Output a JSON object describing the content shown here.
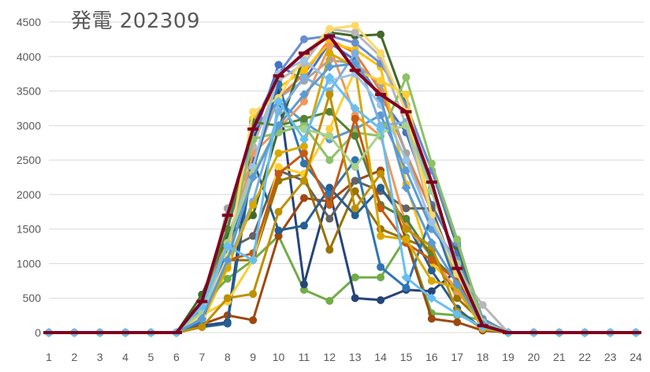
{
  "chart_data": {
    "type": "line",
    "title": "発電 202309",
    "xlabel": "",
    "ylabel": "",
    "x": [
      1,
      2,
      3,
      4,
      5,
      6,
      7,
      8,
      9,
      10,
      11,
      12,
      13,
      14,
      15,
      16,
      17,
      18,
      19,
      20,
      21,
      22,
      23,
      24
    ],
    "ylim": [
      0,
      4500
    ],
    "yticks": [
      0,
      500,
      1000,
      1500,
      2000,
      2500,
      3000,
      3500,
      4000,
      4500
    ],
    "grid": true,
    "legend": "none",
    "series": [
      {
        "color": "#4472C4",
        "marker": "circle",
        "values": [
          0,
          0,
          0,
          0,
          0,
          0,
          350,
          1500,
          2800,
          3880,
          3650,
          4200,
          3950,
          3400,
          2900,
          1850,
          1150,
          180,
          0,
          0,
          0,
          0,
          0,
          0
        ]
      },
      {
        "color": "#ED7D31",
        "marker": "circle",
        "values": [
          0,
          0,
          0,
          0,
          0,
          0,
          300,
          1350,
          2500,
          3400,
          3750,
          4250,
          4050,
          3500,
          2600,
          1750,
          850,
          160,
          0,
          0,
          0,
          0,
          0,
          0
        ]
      },
      {
        "color": "#A5A5A5",
        "marker": "circle",
        "values": [
          0,
          0,
          0,
          0,
          0,
          0,
          300,
          1800,
          2450,
          3400,
          3650,
          3950,
          3900,
          3600,
          2600,
          1550,
          1050,
          170,
          0,
          0,
          0,
          0,
          0,
          0
        ]
      },
      {
        "color": "#FFC000",
        "marker": "circle",
        "values": [
          0,
          0,
          0,
          0,
          0,
          0,
          150,
          930,
          3100,
          3550,
          3800,
          4200,
          4100,
          3850,
          2150,
          1000,
          650,
          60,
          0,
          0,
          0,
          0,
          0,
          0
        ]
      },
      {
        "color": "#5B9BD5",
        "marker": "circle",
        "values": [
          0,
          0,
          0,
          0,
          0,
          0,
          300,
          1100,
          2950,
          3350,
          3050,
          2800,
          2950,
          3150,
          2350,
          1500,
          1050,
          150,
          0,
          0,
          0,
          0,
          0,
          0
        ]
      },
      {
        "color": "#70AD47",
        "marker": "circle",
        "values": [
          0,
          0,
          0,
          0,
          0,
          0,
          400,
          780,
          1050,
          1400,
          620,
          460,
          800,
          800,
          1380,
          280,
          250,
          180,
          0,
          0,
          0,
          0,
          0,
          0
        ]
      },
      {
        "color": "#264478",
        "marker": "circle",
        "values": [
          0,
          0,
          0,
          0,
          0,
          0,
          100,
          150,
          2800,
          3500,
          700,
          2050,
          500,
          470,
          620,
          600,
          900,
          90,
          0,
          0,
          0,
          0,
          0,
          0
        ]
      },
      {
        "color": "#9E480E",
        "marker": "circle",
        "values": [
          0,
          0,
          0,
          0,
          0,
          0,
          120,
          250,
          180,
          1400,
          1950,
          1900,
          2200,
          2350,
          1350,
          200,
          150,
          30,
          0,
          0,
          0,
          0,
          0,
          0
        ]
      },
      {
        "color": "#636363",
        "marker": "circle",
        "values": [
          0,
          0,
          0,
          0,
          0,
          0,
          250,
          1200,
          1400,
          2350,
          2200,
          1650,
          2200,
          2050,
          1800,
          1800,
          800,
          110,
          0,
          0,
          0,
          0,
          0,
          0
        ]
      },
      {
        "color": "#997300",
        "marker": "circle",
        "values": [
          0,
          0,
          0,
          0,
          0,
          0,
          200,
          1050,
          1050,
          2200,
          2300,
          1200,
          2050,
          1500,
          1350,
          1200,
          500,
          150,
          0,
          0,
          0,
          0,
          0,
          0
        ]
      },
      {
        "color": "#255E91",
        "marker": "circle",
        "values": [
          0,
          0,
          0,
          0,
          0,
          0,
          80,
          130,
          2500,
          1480,
          1550,
          2100,
          1700,
          2100,
          1600,
          900,
          350,
          50,
          0,
          0,
          0,
          0,
          0,
          0
        ]
      },
      {
        "color": "#43682B",
        "marker": "circle",
        "values": [
          0,
          0,
          0,
          0,
          0,
          0,
          550,
          1400,
          1700,
          2950,
          4000,
          4350,
          4300,
          4320,
          3300,
          2350,
          1250,
          200,
          0,
          0,
          0,
          0,
          0,
          0
        ]
      },
      {
        "color": "#698ED0",
        "marker": "circle",
        "values": [
          0,
          0,
          0,
          0,
          0,
          0,
          350,
          1650,
          3000,
          3750,
          4250,
          4300,
          4200,
          3900,
          3300,
          2350,
          1300,
          200,
          0,
          0,
          0,
          0,
          0,
          0
        ]
      },
      {
        "color": "#F1975A",
        "marker": "circle",
        "values": [
          0,
          0,
          0,
          0,
          0,
          0,
          250,
          1150,
          2600,
          2950,
          3350,
          4150,
          3150,
          2850,
          1550,
          1100,
          600,
          120,
          0,
          0,
          0,
          0,
          0,
          0
        ]
      },
      {
        "color": "#B7B7B7",
        "marker": "circle",
        "values": [
          0,
          0,
          0,
          0,
          0,
          0,
          250,
          1650,
          2700,
          3650,
          3900,
          4400,
          4350,
          4000,
          3000,
          1700,
          900,
          400,
          0,
          0,
          0,
          0,
          0,
          0
        ]
      },
      {
        "color": "#FFCD33",
        "marker": "circle",
        "values": [
          0,
          0,
          0,
          0,
          0,
          0,
          250,
          450,
          1050,
          2400,
          2300,
          2950,
          3800,
          3650,
          3450,
          1700,
          700,
          80,
          0,
          0,
          0,
          0,
          0,
          0
        ]
      },
      {
        "color": "#7CAFDD",
        "marker": "circle",
        "values": [
          0,
          0,
          0,
          0,
          0,
          0,
          200,
          1000,
          1900,
          3200,
          3700,
          3500,
          4050,
          3000,
          3050,
          2100,
          950,
          120,
          0,
          0,
          0,
          0,
          0,
          0
        ]
      },
      {
        "color": "#8CC168",
        "marker": "circle",
        "values": [
          0,
          0,
          0,
          0,
          0,
          0,
          250,
          1250,
          2800,
          2900,
          3000,
          2500,
          2900,
          2850,
          3700,
          2450,
          1350,
          150,
          0,
          0,
          0,
          0,
          0,
          0
        ]
      },
      {
        "color": "#2E75B6",
        "marker": "circle",
        "values": [
          0,
          0,
          0,
          0,
          0,
          0,
          150,
          1200,
          2350,
          3600,
          2450,
          2000,
          2500,
          950,
          650,
          1700,
          650,
          100,
          0,
          0,
          0,
          0,
          0,
          0
        ]
      },
      {
        "color": "#548235",
        "marker": "circle",
        "values": [
          0,
          0,
          0,
          0,
          0,
          0,
          450,
          1500,
          3050,
          3000,
          3100,
          3200,
          2850,
          1850,
          1650,
          1100,
          750,
          150,
          0,
          0,
          0,
          0,
          0,
          0
        ]
      },
      {
        "color": "#C55A11",
        "marker": "circle",
        "values": [
          0,
          0,
          0,
          0,
          0,
          0,
          280,
          1050,
          1150,
          2300,
          2600,
          1850,
          3100,
          1800,
          1300,
          1050,
          750,
          100,
          0,
          0,
          0,
          0,
          0,
          0
        ]
      },
      {
        "color": "#BF9000",
        "marker": "circle",
        "values": [
          0,
          0,
          0,
          0,
          0,
          0,
          80,
          500,
          560,
          1750,
          2200,
          3450,
          1800,
          2300,
          1500,
          1250,
          300,
          50,
          0,
          0,
          0,
          0,
          0,
          0
        ]
      },
      {
        "color": "#D9A800",
        "marker": "circle",
        "values": [
          0,
          0,
          0,
          0,
          0,
          0,
          220,
          950,
          1850,
          2600,
          2700,
          4050,
          3850,
          1400,
          1350,
          750,
          650,
          60,
          0,
          0,
          0,
          0,
          0,
          0
        ]
      },
      {
        "color": "#FFD966",
        "marker": "circle",
        "values": [
          0,
          0,
          0,
          0,
          0,
          0,
          250,
          1100,
          3200,
          3400,
          4000,
          4400,
          4450,
          4050,
          3200,
          1700,
          850,
          140,
          0,
          0,
          0,
          0,
          0,
          0
        ]
      },
      {
        "color": "#9DC3E6",
        "marker": "circle",
        "values": [
          0,
          0,
          0,
          0,
          0,
          0,
          200,
          1300,
          2400,
          3750,
          3950,
          3650,
          3750,
          3300,
          2500,
          1600,
          950,
          150,
          0,
          0,
          0,
          0,
          0,
          0
        ]
      },
      {
        "color": "#A9D18E",
        "marker": "circle",
        "values": [
          0,
          0,
          0,
          0,
          0,
          0,
          300,
          1300,
          2300,
          3000,
          2950,
          2850,
          2400,
          2900,
          3000,
          2050,
          1000,
          150,
          0,
          0,
          0,
          0,
          0,
          0
        ]
      },
      {
        "color": "#5B9BD5",
        "marker": "diamond",
        "values": [
          0,
          0,
          0,
          0,
          0,
          0,
          200,
          1050,
          2250,
          3000,
          3450,
          3850,
          3900,
          3400,
          2100,
          1300,
          700,
          120,
          0,
          0,
          0,
          0,
          0,
          0
        ]
      },
      {
        "color": "#66BFF2",
        "marker": "diamond",
        "values": [
          0,
          0,
          0,
          0,
          0,
          0,
          380,
          1250,
          1050,
          3350,
          2800,
          3700,
          3250,
          2950,
          800,
          500,
          270,
          80,
          0,
          0,
          0,
          0,
          0,
          0
        ]
      },
      {
        "color": "#800020",
        "marker": "dash",
        "values": [
          0,
          0,
          0,
          0,
          0,
          0,
          450,
          1700,
          2950,
          3720,
          4050,
          4300,
          3800,
          3450,
          3200,
          2180,
          930,
          100,
          0,
          0,
          0,
          0,
          0,
          0
        ]
      }
    ]
  }
}
